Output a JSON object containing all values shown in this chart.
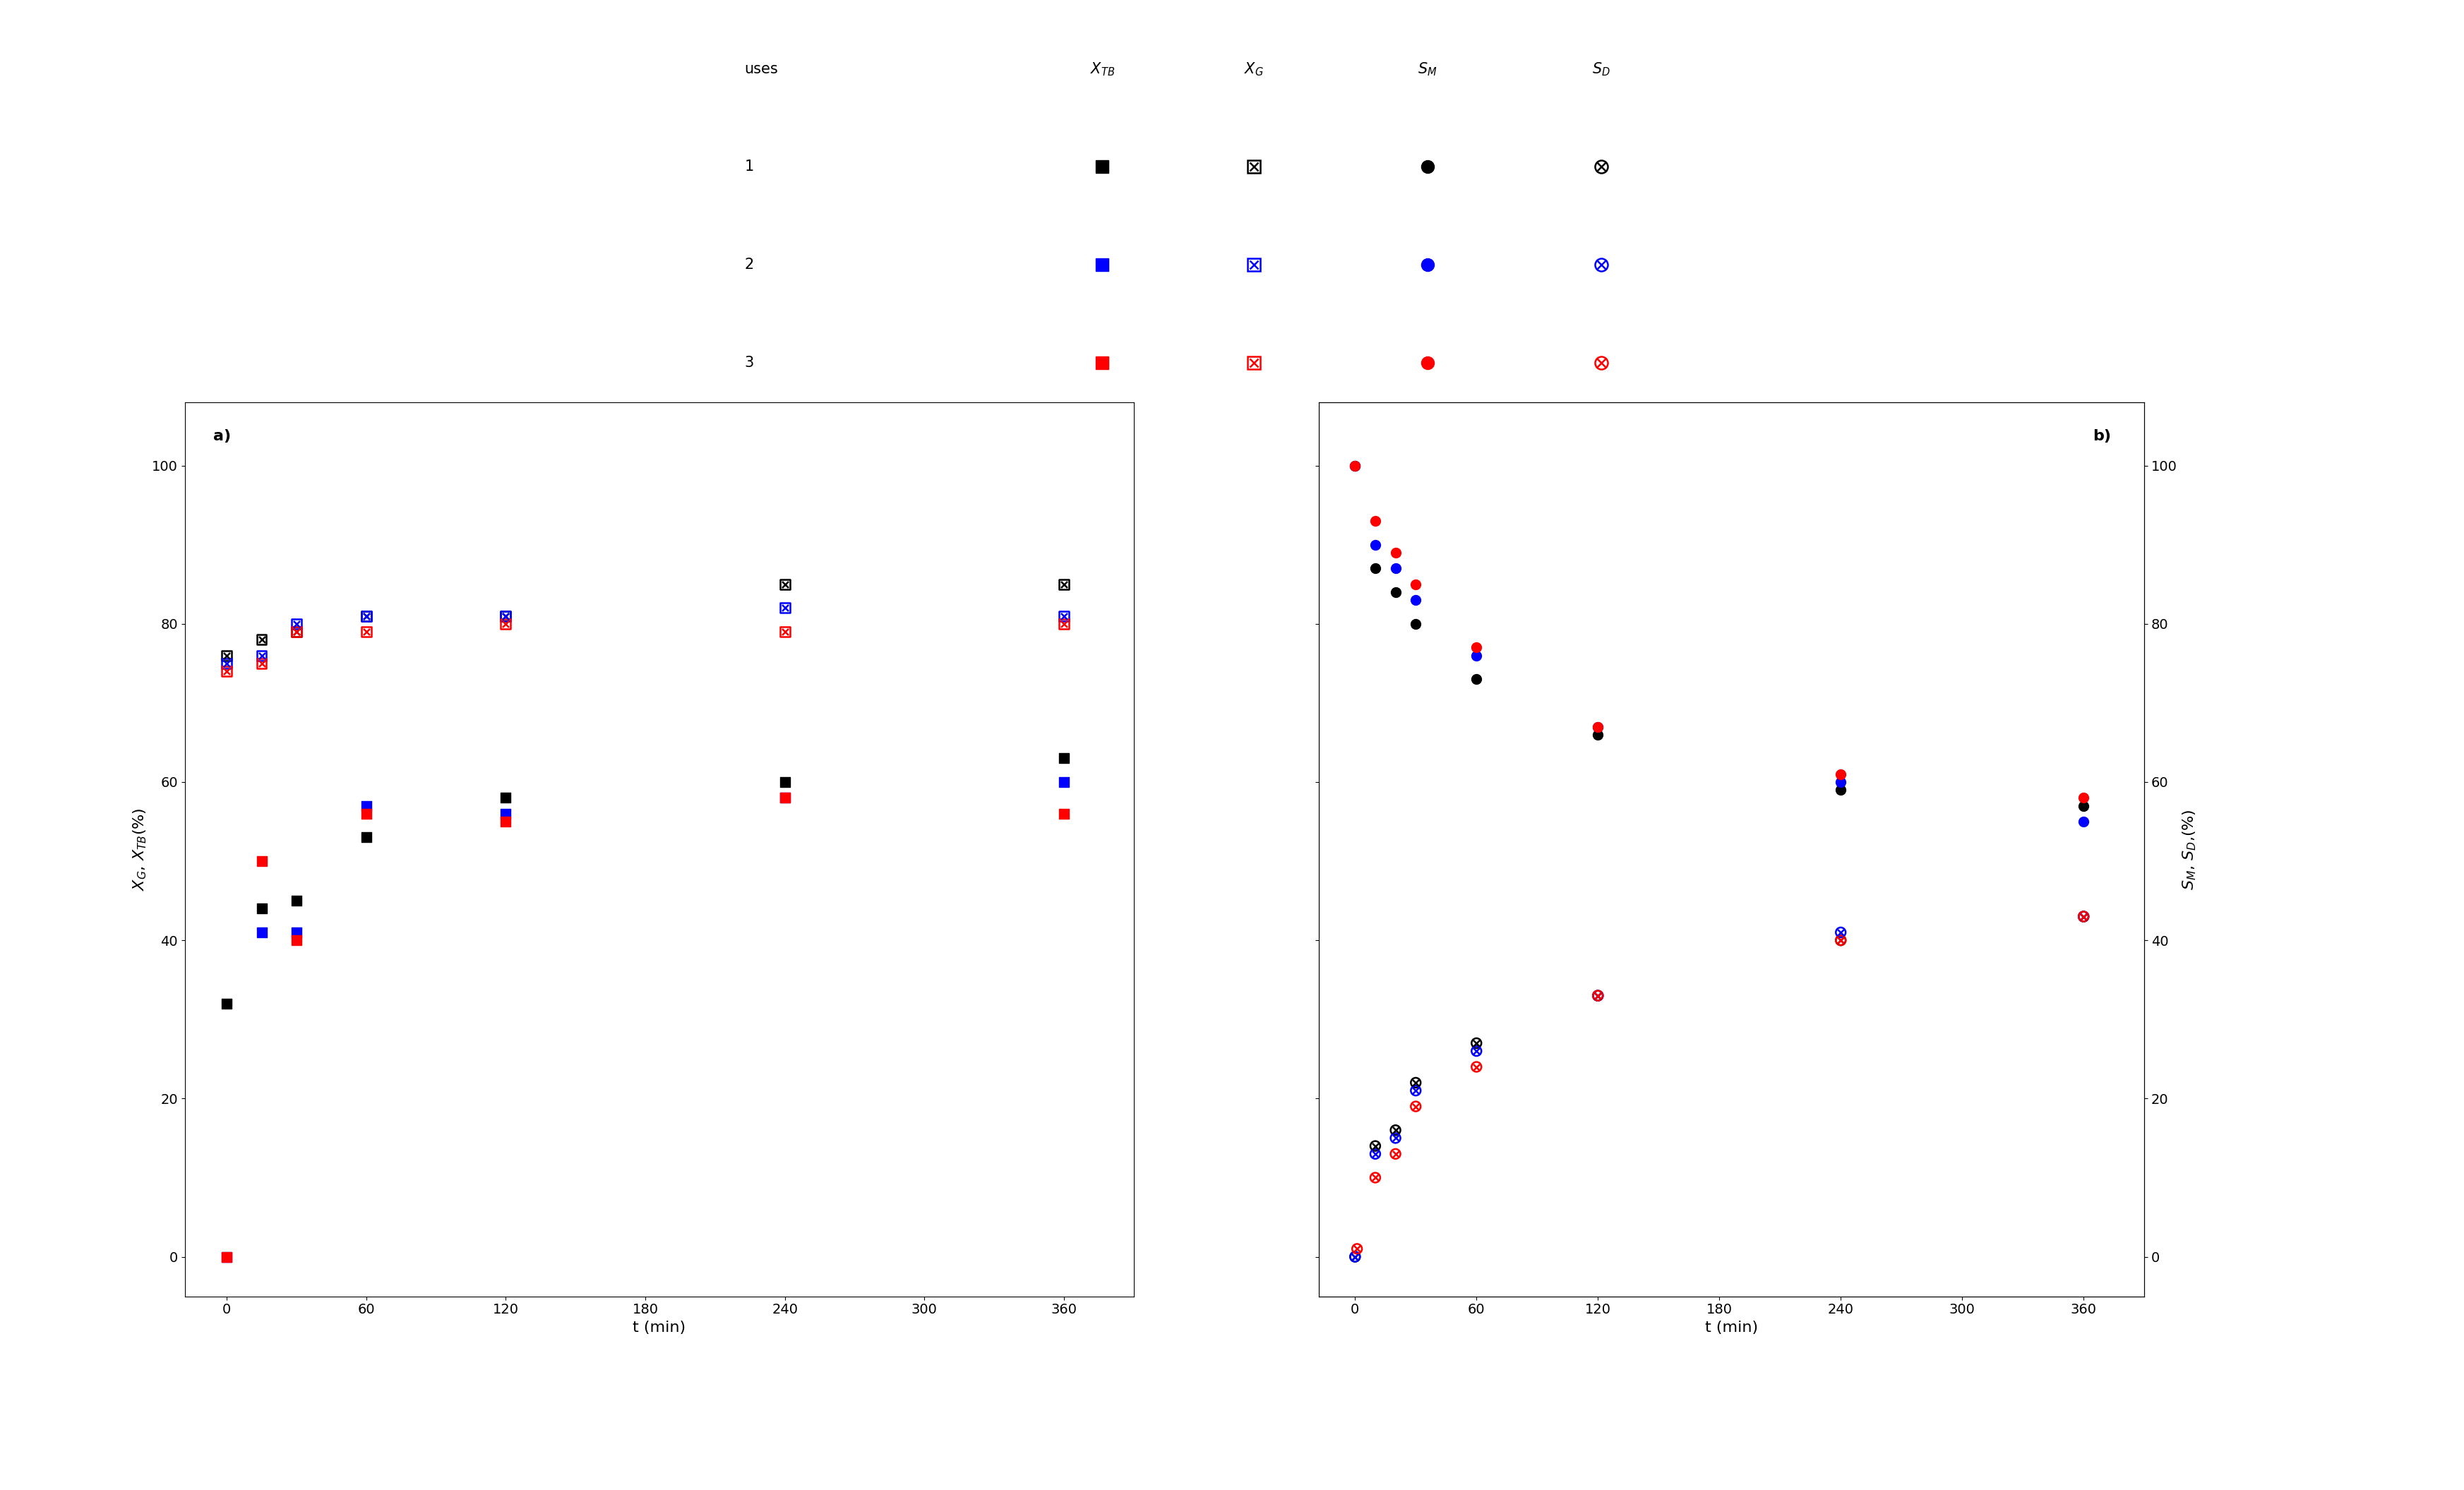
{
  "panel_a_label": "a)",
  "panel_b_label": "b)",
  "xlabel": "t (min)",
  "xticks": [
    0,
    60,
    120,
    180,
    240,
    300,
    360
  ],
  "yticks": [
    0,
    20,
    40,
    60,
    80,
    100
  ],
  "xlim": [
    -18,
    390
  ],
  "ylim": [
    -5,
    108
  ],
  "panel_a": {
    "XTB_1": {
      "t": [
        0,
        15,
        30,
        60,
        120,
        240,
        360
      ],
      "v": [
        32,
        44,
        45,
        53,
        58,
        60,
        63
      ]
    },
    "XTB_2": {
      "t": [
        0,
        15,
        30,
        60,
        120,
        240,
        360
      ],
      "v": [
        0,
        41,
        41,
        57,
        56,
        58,
        60
      ]
    },
    "XTB_3": {
      "t": [
        0,
        15,
        30,
        60,
        120,
        240,
        360
      ],
      "v": [
        0,
        50,
        40,
        56,
        55,
        58,
        56
      ]
    },
    "XG_1": {
      "t": [
        0,
        15,
        30,
        60,
        120,
        240,
        360
      ],
      "v": [
        76,
        78,
        79,
        81,
        81,
        85,
        85
      ]
    },
    "XG_2": {
      "t": [
        0,
        15,
        30,
        60,
        120,
        240,
        360
      ],
      "v": [
        75,
        76,
        80,
        81,
        81,
        82,
        81
      ]
    },
    "XG_3": {
      "t": [
        0,
        15,
        30,
        60,
        120,
        240,
        360
      ],
      "v": [
        74,
        75,
        79,
        79,
        80,
        79,
        80
      ]
    }
  },
  "panel_b": {
    "SM_1": {
      "t": [
        0,
        10,
        20,
        30,
        60,
        120,
        240,
        360
      ],
      "v": [
        100,
        87,
        84,
        80,
        73,
        66,
        59,
        57
      ]
    },
    "SM_2": {
      "t": [
        0,
        10,
        20,
        30,
        60,
        120,
        240,
        360
      ],
      "v": [
        100,
        90,
        87,
        83,
        76,
        67,
        60,
        55
      ]
    },
    "SM_3": {
      "t": [
        0,
        10,
        20,
        30,
        60,
        120,
        240,
        360
      ],
      "v": [
        100,
        93,
        89,
        85,
        77,
        67,
        61,
        58
      ]
    },
    "SD_1": {
      "t": [
        0,
        10,
        20,
        30,
        60,
        120,
        240,
        360
      ],
      "v": [
        0,
        14,
        16,
        22,
        27,
        33,
        40,
        43
      ]
    },
    "SD_2": {
      "t": [
        0,
        10,
        20,
        30,
        60,
        120,
        240,
        360
      ],
      "v": [
        0,
        13,
        15,
        21,
        26,
        33,
        41,
        43
      ]
    },
    "SD_3": {
      "t": [
        1,
        10,
        20,
        30,
        60,
        120,
        240,
        360
      ],
      "v": [
        1,
        10,
        13,
        19,
        24,
        33,
        40,
        43
      ]
    }
  },
  "colors": {
    "1": "#000000",
    "2": "#0000FF",
    "3": "#FF0000"
  },
  "marker_size": 10,
  "font_size": 16,
  "tick_font_size": 14,
  "legend_font_size": 15
}
